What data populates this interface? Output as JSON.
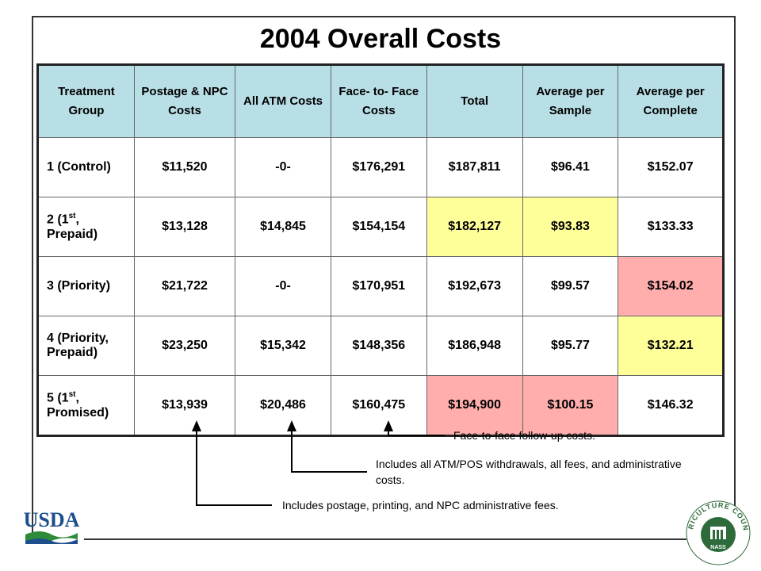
{
  "title": "2004 Overall Costs",
  "table": {
    "headers": [
      "Treatment Group",
      "Postage & NPC Costs",
      "All ATM Costs",
      "Face- to- Face Costs",
      "Total",
      "Average per Sample",
      "Average per Complete"
    ],
    "rows": [
      {
        "group": "1 (Control)",
        "group_sup": "",
        "group_rest": "",
        "postage": "$11,520",
        "atm": "-0-",
        "f2f": "$176,291",
        "total": "$187,811",
        "avg_sample": "$96.41",
        "avg_complete": "$152.07"
      },
      {
        "group": "2 (1",
        "group_sup": "st",
        "group_rest": ", Prepaid)",
        "postage": "$13,128",
        "atm": "$14,845",
        "f2f": "$154,154",
        "total": "$182,127",
        "avg_sample": "$93.83",
        "avg_complete": "$133.33"
      },
      {
        "group": "3 (Priority)",
        "group_sup": "",
        "group_rest": "",
        "postage": "$21,722",
        "atm": "-0-",
        "f2f": "$170,951",
        "total": "$192,673",
        "avg_sample": "$99.57",
        "avg_complete": "$154.02"
      },
      {
        "group": "4 (Priority, Prepaid)",
        "group_sup": "",
        "group_rest": "",
        "postage": "$23,250",
        "atm": "$15,342",
        "f2f": "$148,356",
        "total": "$186,948",
        "avg_sample": "$95.77",
        "avg_complete": "$132.21"
      },
      {
        "group": "5 (1",
        "group_sup": "st",
        "group_rest": ", Promised)",
        "postage": "$13,939",
        "atm": "$20,486",
        "f2f": "$160,475",
        "total": "$194,900",
        "avg_sample": "$100.15",
        "avg_complete": "$146.32"
      }
    ]
  },
  "notes": {
    "f2f": "Face-to-face follow-up costs.",
    "atm": "Includes all ATM/POS withdrawals, all fees, and administrative costs.",
    "postage": "Includes postage, printing, and NPC administrative fees."
  },
  "logos": {
    "usda": "USDA",
    "nass_ring": "AGRICULTURE COUNTS",
    "nass_center": "NASS"
  },
  "colors": {
    "header_bg": "#b9dfe6",
    "highlight_low": "#ffff99",
    "highlight_high": "#ffadad",
    "usda_blue": "#1c4f8c",
    "usda_green": "#2e8b3a"
  }
}
